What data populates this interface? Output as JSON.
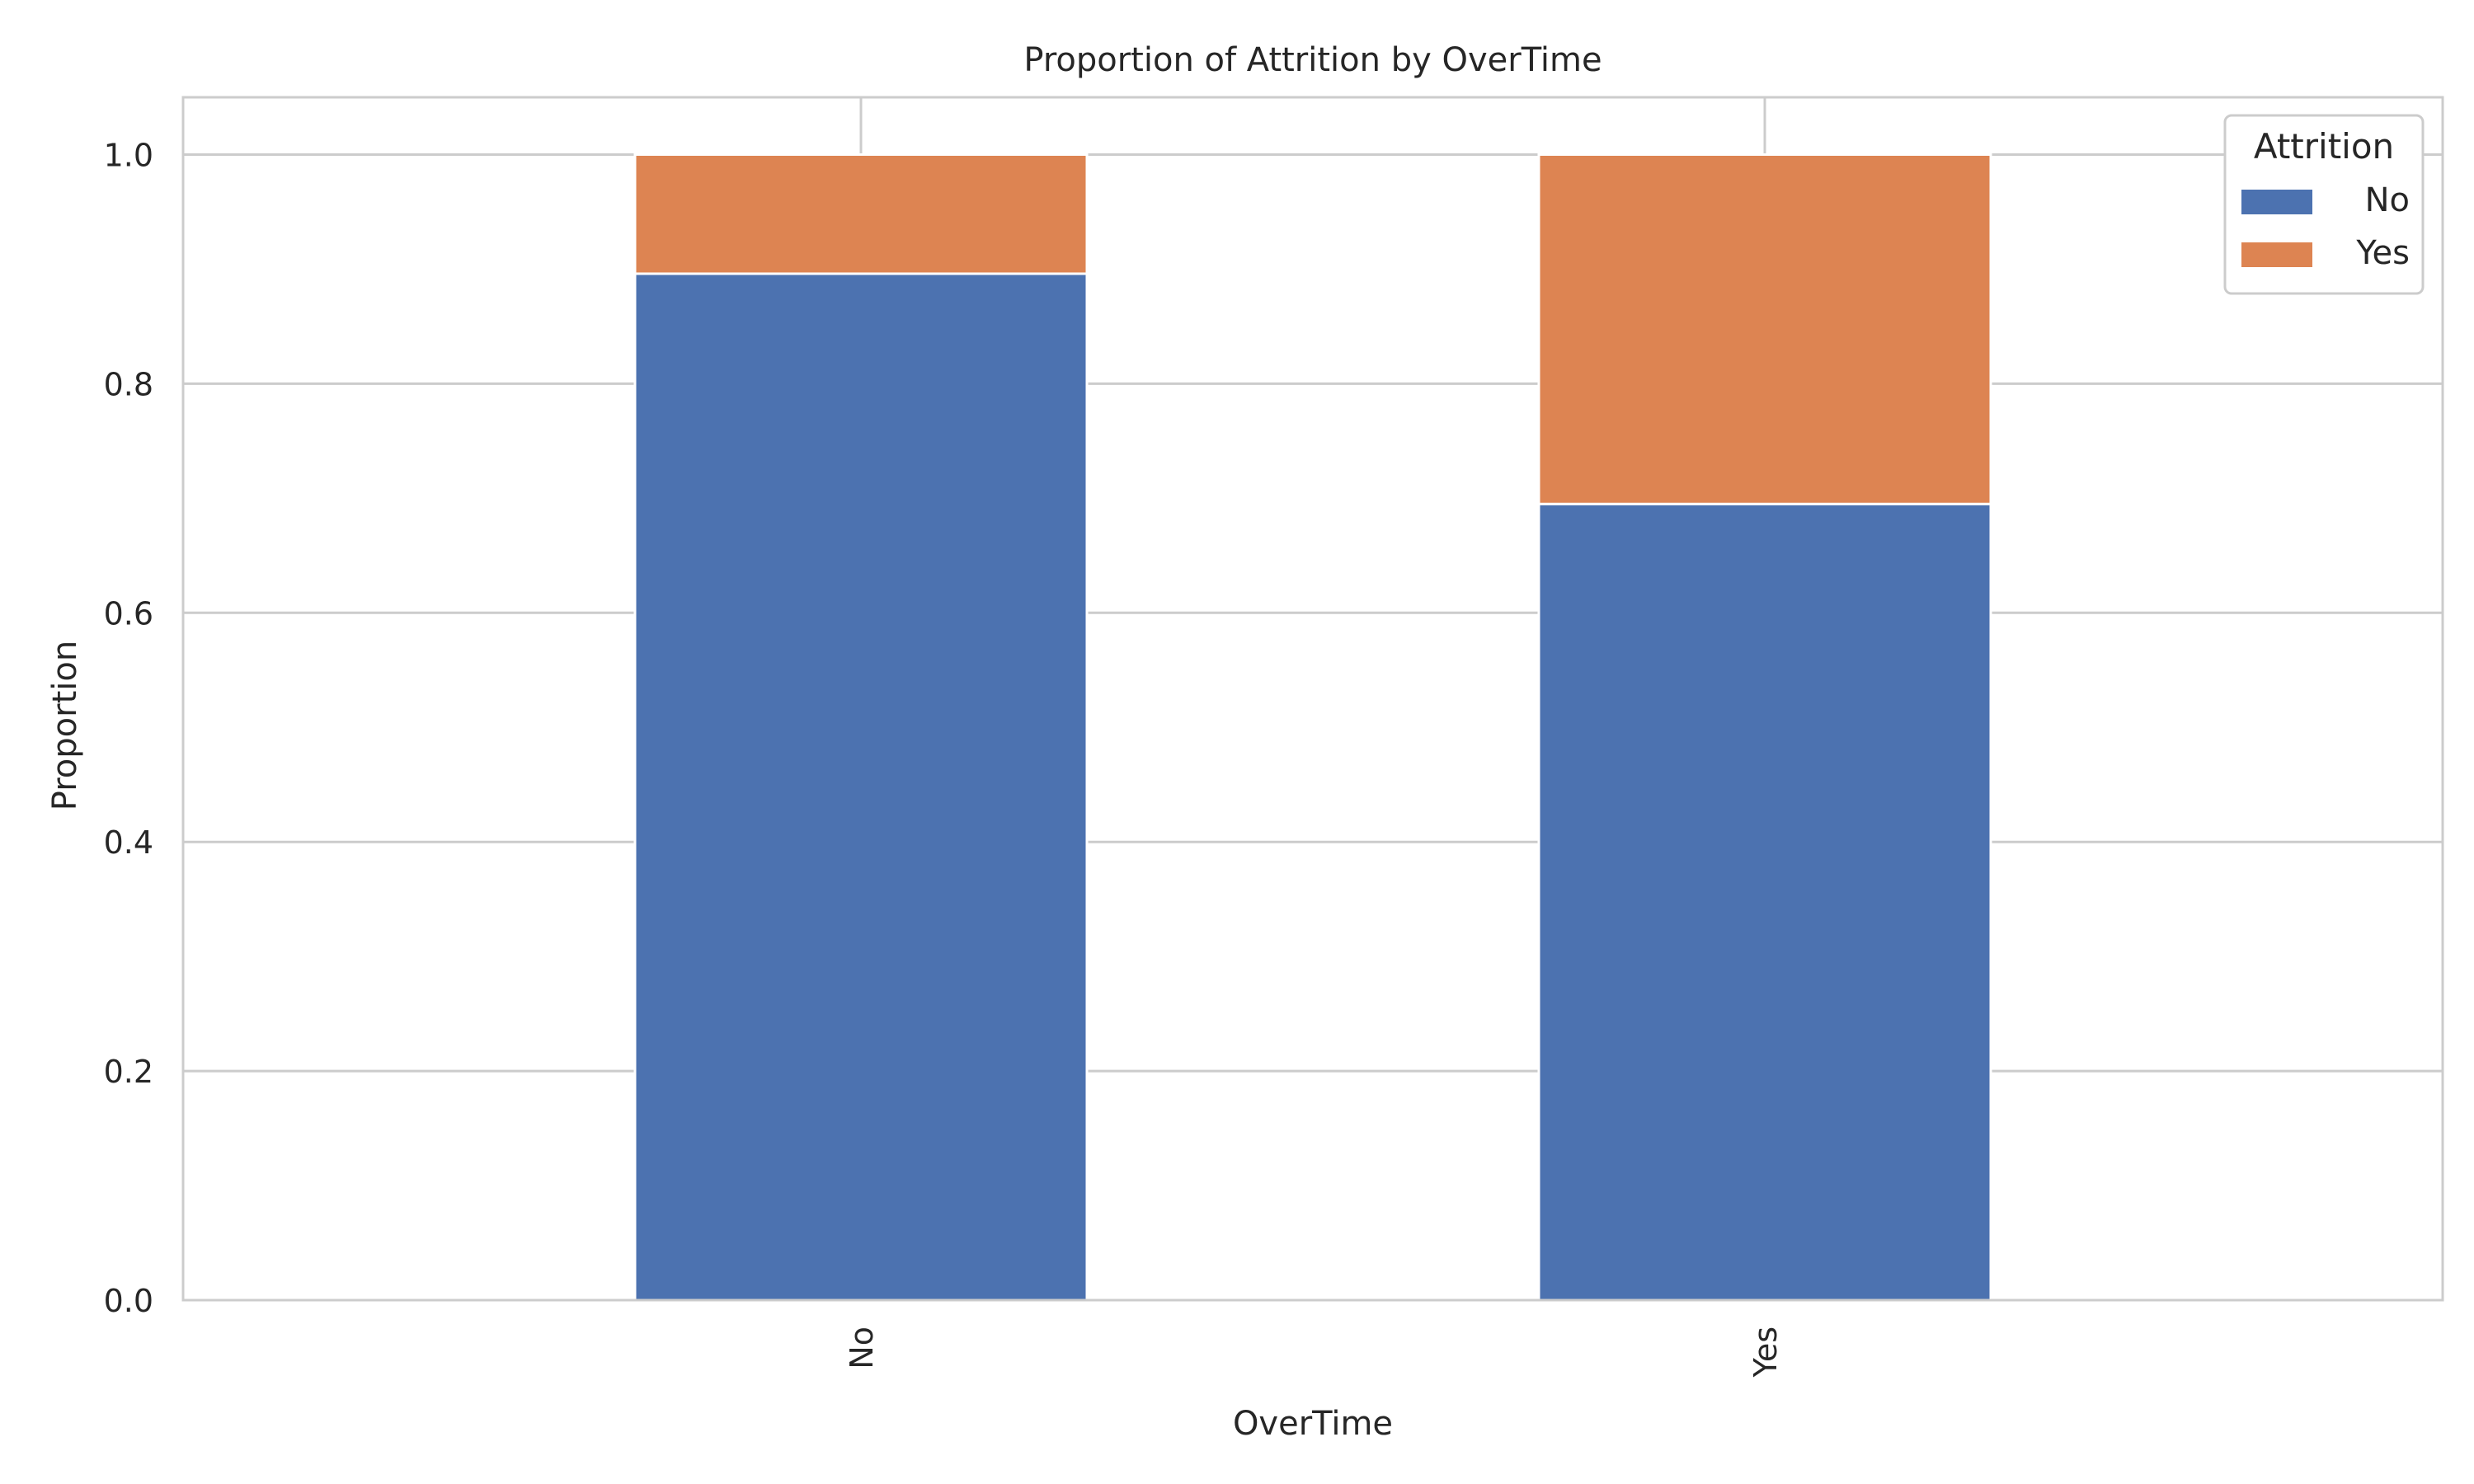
{
  "chart_data": {
    "type": "bar",
    "stacked": true,
    "title": "Proportion of Attrition by OverTime",
    "xlabel": "OverTime",
    "ylabel": "Proportion",
    "categories": [
      "No",
      "Yes"
    ],
    "series": [
      {
        "name": "No",
        "values": [
          0.896,
          0.695
        ],
        "color": "#4c72b0"
      },
      {
        "name": "Yes",
        "values": [
          0.104,
          0.305
        ],
        "color": "#dd8452"
      }
    ],
    "ylim": [
      0,
      1.05
    ],
    "yticks": [
      0.0,
      0.2,
      0.4,
      0.6,
      0.8,
      1.0
    ],
    "ytick_labels": [
      "0.0",
      "0.2",
      "0.4",
      "0.6",
      "0.8",
      "1.0"
    ],
    "grid": true,
    "legend": {
      "title": "Attrition",
      "position": "top-right"
    }
  }
}
